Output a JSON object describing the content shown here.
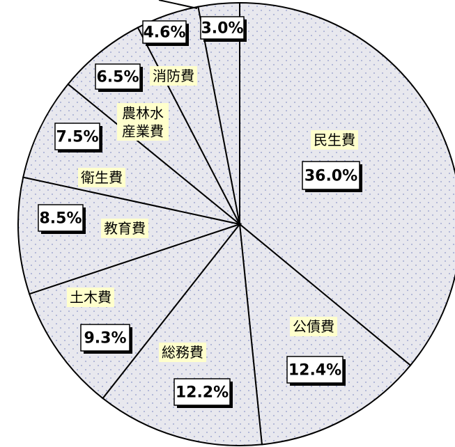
{
  "chart_data": {
    "type": "pie",
    "colors": {
      "slice_fill": "#e8e8ee",
      "dot": "#8c96c8",
      "category_box": "#ffffcc",
      "value_box": "#ffffff",
      "line": "#000000"
    },
    "slices": [
      {
        "id": "minsei",
        "category": "民生費",
        "value": 36.0,
        "value_label": "36.0%"
      },
      {
        "id": "kousai",
        "category": "公債費",
        "value": 12.4,
        "value_label": "12.4%"
      },
      {
        "id": "soumu",
        "category": "総務費",
        "value": 12.2,
        "value_label": "12.2%"
      },
      {
        "id": "doboku",
        "category": "土木費",
        "value": 9.3,
        "value_label": "9.3%"
      },
      {
        "id": "kyouiku",
        "category": "教育費",
        "value": 8.5,
        "value_label": "8.5%"
      },
      {
        "id": "eisei",
        "category": "衛生費",
        "value": 7.5,
        "value_label": "7.5%"
      },
      {
        "id": "nourin",
        "category": "農林水産業費",
        "category_lines": [
          "農林水",
          "産業費"
        ],
        "value": 6.5,
        "value_label": "6.5%"
      },
      {
        "id": "shoubou",
        "category": "消防費",
        "value": 4.6,
        "value_label": "4.6%"
      },
      {
        "id": "other_a",
        "category": "",
        "value": 3.0,
        "value_label": "3.0%"
      }
    ]
  }
}
